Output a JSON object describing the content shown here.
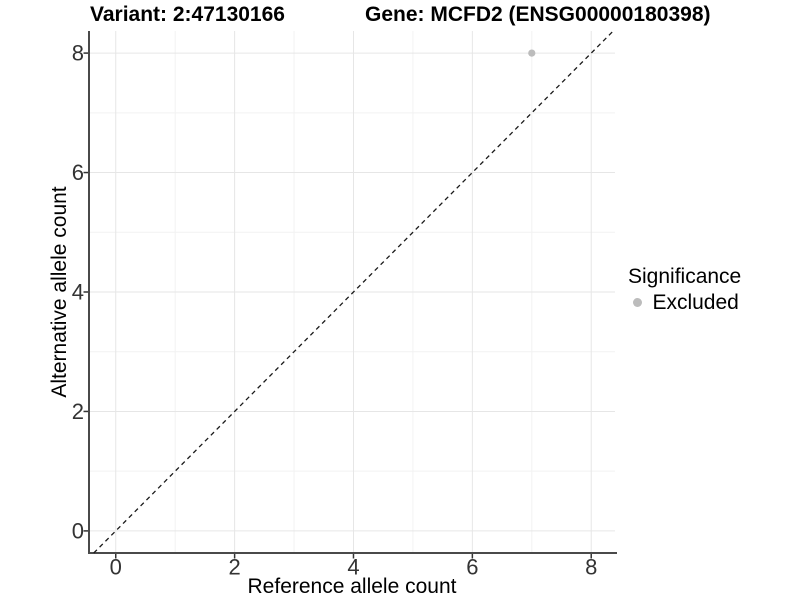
{
  "chart_data": {
    "type": "scatter",
    "title_left": "Variant: 2:47130166",
    "title_right": "Gene: MCFD2 (ENSG00000180398)",
    "xlabel": "Reference allele count",
    "ylabel": "Alternative allele count",
    "xlim": [
      -0.45,
      8.4
    ],
    "ylim": [
      -0.37,
      8.37
    ],
    "x_ticks": [
      0,
      2,
      4,
      6,
      8
    ],
    "y_ticks": [
      0,
      2,
      4,
      6,
      8
    ],
    "x_minor_ticks": [
      1,
      3,
      5,
      7
    ],
    "y_minor_ticks": [
      1,
      3,
      5,
      7
    ],
    "grid": "on",
    "series": [
      {
        "name": "Excluded",
        "color": "#bcbcbc",
        "points": [
          {
            "x": 7,
            "y": 8
          }
        ]
      }
    ],
    "reference_line": {
      "slope": 1,
      "intercept": 0,
      "style": "dashed",
      "color": "#1a1a1a"
    },
    "legend": {
      "title": "Significance",
      "position": "right",
      "items": [
        {
          "label": "Excluded",
          "color": "#bcbcbc"
        }
      ]
    }
  },
  "colors": {
    "background": "#ffffff",
    "grid_major": "#e6e6e6",
    "grid_minor": "#f2f2f2",
    "axis_line": "#4a4a4a",
    "tick_mark": "#333333",
    "tick_label": "#333333",
    "text": "#000000"
  }
}
